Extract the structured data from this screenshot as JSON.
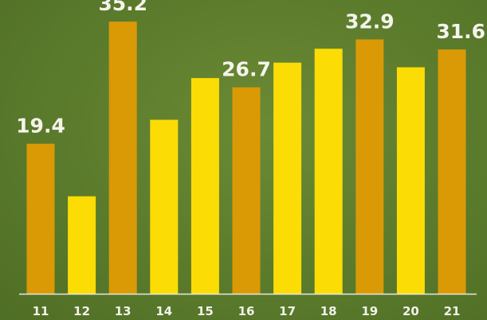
{
  "chart_data": {
    "type": "bar",
    "title": "",
    "xlabel": "",
    "ylabel": "",
    "categories": [
      "11",
      "12",
      "13",
      "14",
      "15",
      "16",
      "17",
      "18",
      "19",
      "20",
      "21"
    ],
    "values": [
      19.4,
      12.6,
      35.2,
      22.5,
      27.9,
      26.7,
      29.9,
      31.7,
      32.9,
      29.3,
      31.6
    ],
    "data_labels": [
      "19.4",
      "",
      "35.2",
      "",
      "",
      "26.7",
      "",
      "",
      "32.9",
      "",
      "31.6"
    ],
    "ylim": [
      0,
      38
    ],
    "grid": false,
    "legend": "none",
    "background_color": "#5b7b2c",
    "bar_colors": [
      "#d99a06",
      "#fbdc05",
      "#d99a06",
      "#fbdc05",
      "#fbdc05",
      "#d99a06",
      "#fbdc05",
      "#fbdc05",
      "#d99a06",
      "#fbdc05",
      "#d99a06"
    ],
    "axis_color": "#e8e8e0"
  }
}
